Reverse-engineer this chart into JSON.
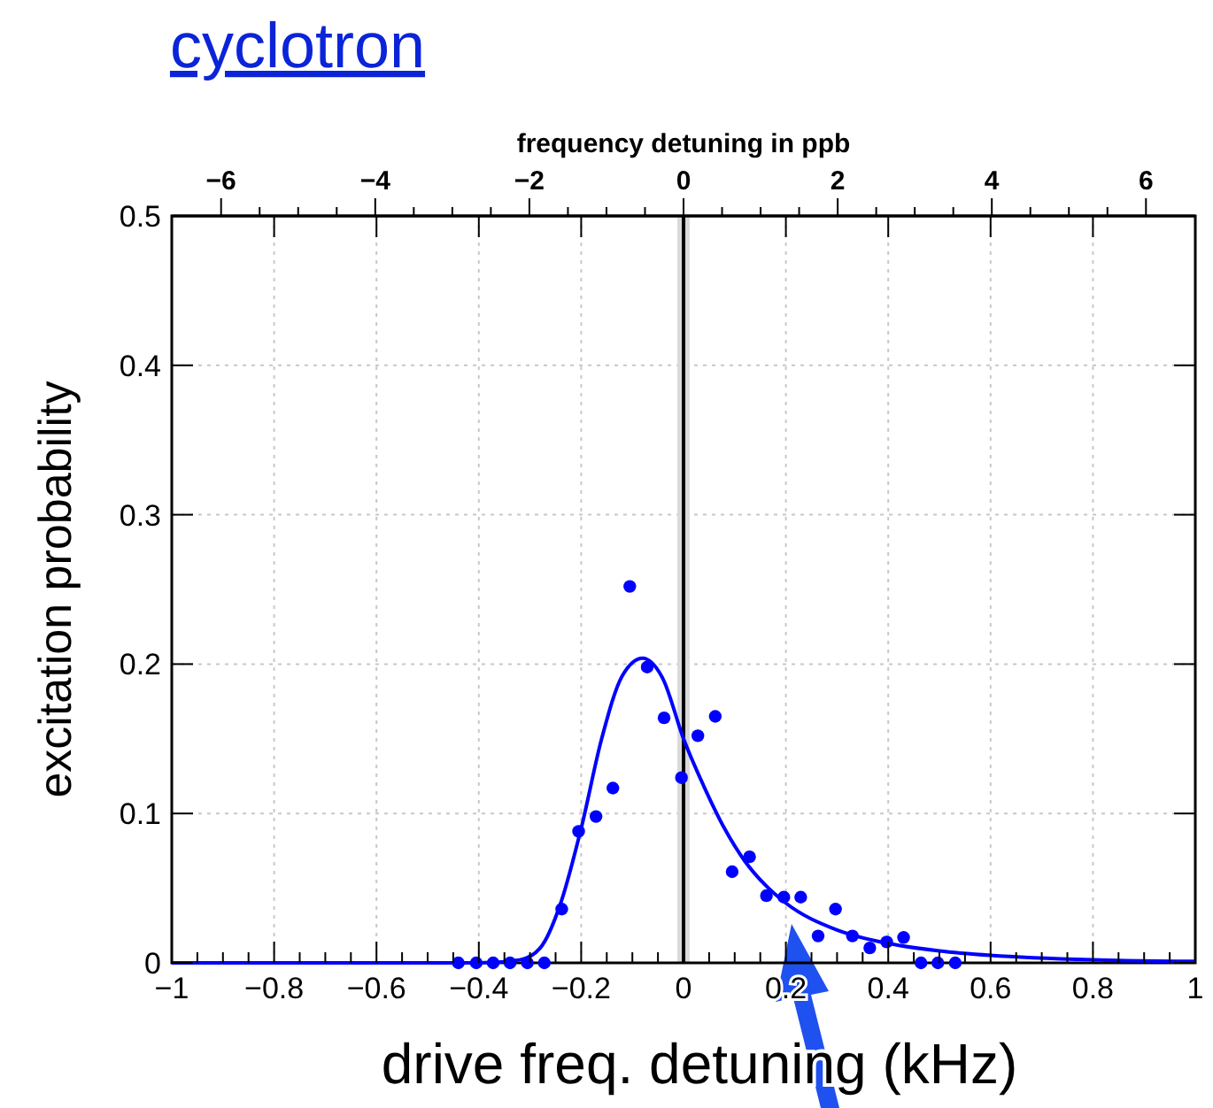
{
  "chart_data": {
    "type": "scatter",
    "title": "cyclotron",
    "xlabel": "drive freq. detuning (kHz)",
    "ylabel": "excitation probability",
    "x2label": "frequency detuning in ppb",
    "xlim": [
      -1,
      1
    ],
    "ylim": [
      0,
      0.5
    ],
    "x2lim": [
      -6.64,
      6.64
    ],
    "xticks": [
      {
        "value": -1,
        "label": "−1"
      },
      {
        "value": -0.8,
        "label": "−0.8"
      },
      {
        "value": -0.6,
        "label": "−0.6"
      },
      {
        "value": -0.4,
        "label": "−0.4"
      },
      {
        "value": -0.2,
        "label": "−0.2"
      },
      0,
      0.2,
      0.4,
      0.6,
      0.8,
      1
    ],
    "yticks": [
      0,
      0.1,
      0.2,
      0.3,
      0.4,
      0.5
    ],
    "x2ticks": [
      {
        "value": -6,
        "label": "−6"
      },
      {
        "value": -4,
        "label": "−4"
      },
      {
        "value": -2,
        "label": "−2"
      },
      0,
      2,
      4,
      6
    ],
    "grid": true,
    "marker": "circle",
    "ref_lines": [
      {
        "axis": "x",
        "value": 0,
        "color": "#000000"
      }
    ],
    "bands": [
      {
        "axis": "x",
        "from": -0.012,
        "to": 0.012,
        "color": "#d9d9d9"
      }
    ],
    "series": [
      {
        "color": "#0000ff",
        "x": [
          -0.44,
          -0.405,
          -0.372,
          -0.339,
          -0.305,
          -0.272,
          -0.238,
          -0.205,
          -0.171,
          -0.138,
          -0.105,
          -0.071,
          -0.038,
          -0.004,
          0.028,
          0.062,
          0.095,
          0.129,
          0.162,
          0.196,
          0.229,
          0.263,
          0.297,
          0.33,
          0.364,
          0.397,
          0.43,
          0.464,
          0.497,
          0.531
        ],
        "values": [
          0,
          0,
          0,
          0,
          0,
          0,
          0.036,
          0.088,
          0.098,
          0.117,
          0.252,
          0.198,
          0.164,
          0.124,
          0.152,
          0.165,
          0.061,
          0.071,
          0.045,
          0.044,
          0.044,
          0.018,
          0.036,
          0.018,
          0.01,
          0.014,
          0.017,
          0,
          0,
          0
        ]
      },
      {
        "type": "line",
        "color": "#0000ff",
        "marker": "none",
        "x": [
          -1,
          -0.4,
          -0.32,
          -0.28,
          -0.24,
          -0.2,
          -0.16,
          -0.12,
          -0.08,
          -0.04,
          0,
          0.04,
          0.08,
          0.12,
          0.16,
          0.2,
          0.3,
          0.4,
          0.5,
          0.6,
          0.8,
          1
        ],
        "values": [
          0,
          0,
          0.002,
          0.01,
          0.04,
          0.09,
          0.15,
          0.192,
          0.204,
          0.19,
          0.15,
          0.118,
          0.09,
          0.068,
          0.052,
          0.04,
          0.022,
          0.013,
          0.008,
          0.005,
          0.002,
          0.001
        ]
      }
    ]
  }
}
